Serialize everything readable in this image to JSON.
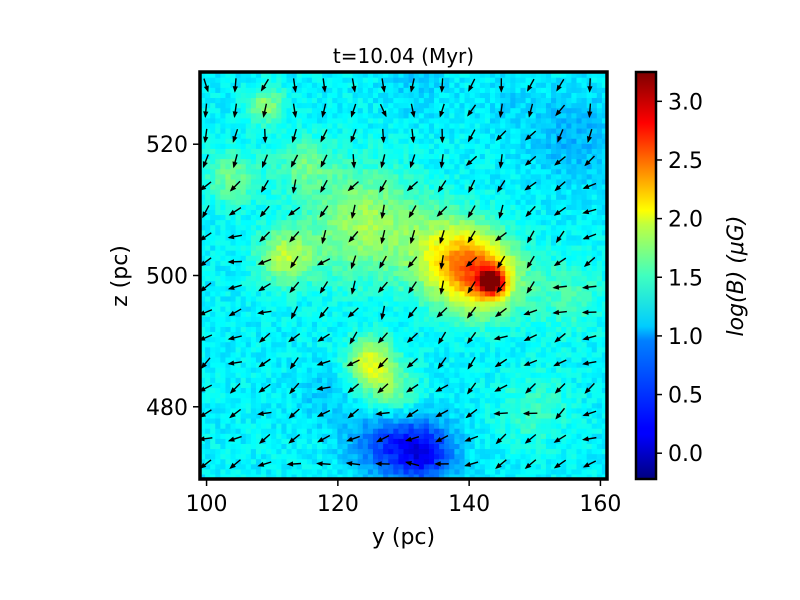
{
  "chart_data": {
    "type": "heatmap",
    "title": "t=10.04 (Myr)",
    "xlabel": "y (pc)",
    "ylabel": "z (pc)",
    "xlim": [
      99,
      161
    ],
    "ylim": [
      469,
      531
    ],
    "xticks": [
      "100",
      "120",
      "140",
      "160"
    ],
    "xtick_values": [
      100,
      120,
      140,
      160
    ],
    "yticks": [
      "480",
      "500",
      "520"
    ],
    "ytick_values": [
      480,
      500,
      520
    ],
    "colorbar": {
      "label": "log(B) (μG)",
      "colormap": "jet",
      "range": [
        -0.22,
        3.25
      ],
      "ticks": [
        "0.0",
        "0.5",
        "1.0",
        "1.5",
        "2.0",
        "2.5",
        "3.0"
      ],
      "tick_values": [
        0.0,
        0.5,
        1.0,
        1.5,
        2.0,
        2.5,
        3.0
      ]
    },
    "field_features": [
      {
        "y": 143.5,
        "z": 499,
        "value": 3.0,
        "sigma": 1.3
      },
      {
        "y": 142,
        "z": 500,
        "value": 2.3,
        "sigma": 4.0
      },
      {
        "y": 137,
        "z": 503,
        "value": 1.9,
        "sigma": 4.5
      },
      {
        "y": 124,
        "z": 508,
        "value": 1.7,
        "sigma": 6.0
      },
      {
        "y": 112,
        "z": 503,
        "value": 1.75,
        "sigma": 3.0
      },
      {
        "y": 125,
        "z": 487,
        "value": 1.9,
        "sigma": 2.5
      },
      {
        "y": 128,
        "z": 482,
        "value": 1.6,
        "sigma": 3.0
      },
      {
        "y": 133,
        "z": 473,
        "value": 0.2,
        "sigma": 3.5
      },
      {
        "y": 127,
        "z": 475,
        "value": 0.5,
        "sigma": 4.0
      },
      {
        "y": 118,
        "z": 482,
        "value": 0.9,
        "sigma": 3.0
      },
      {
        "y": 156,
        "z": 521,
        "value": 0.8,
        "sigma": 5.0
      },
      {
        "y": 132,
        "z": 529,
        "value": 0.9,
        "sigma": 3.5
      },
      {
        "y": 146,
        "z": 527,
        "value": 0.95,
        "sigma": 3.0
      },
      {
        "y": 104,
        "z": 515,
        "value": 1.5,
        "sigma": 3.0
      },
      {
        "y": 109,
        "z": 526,
        "value": 1.6,
        "sigma": 2.0
      },
      {
        "y": 155,
        "z": 497,
        "value": 1.35,
        "sigma": 4.0
      },
      {
        "y": 150,
        "z": 480,
        "value": 1.3,
        "sigma": 4.0
      },
      {
        "y": 115,
        "z": 517,
        "value": 1.45,
        "sigma": 3.0
      }
    ],
    "background_value": 1.05,
    "vector_grid": {
      "y_start": 99.9,
      "y_step": 4.5,
      "y_count": 14,
      "z_start": 471.3,
      "z_step": 3.85,
      "z_count": 16,
      "direction_fields": [
        {
          "y": 100,
          "z": 531,
          "angle_deg": -90
        },
        {
          "y": 130,
          "z": 531,
          "angle_deg": -75
        },
        {
          "y": 160,
          "z": 531,
          "angle_deg": -105
        },
        {
          "y": 100,
          "z": 500,
          "angle_deg": 200
        },
        {
          "y": 130,
          "z": 500,
          "angle_deg": -110
        },
        {
          "y": 160,
          "z": 500,
          "angle_deg": 195
        },
        {
          "y": 100,
          "z": 469,
          "angle_deg": 200
        },
        {
          "y": 130,
          "z": 469,
          "angle_deg": 180
        },
        {
          "y": 160,
          "z": 469,
          "angle_deg": 200
        }
      ]
    }
  }
}
